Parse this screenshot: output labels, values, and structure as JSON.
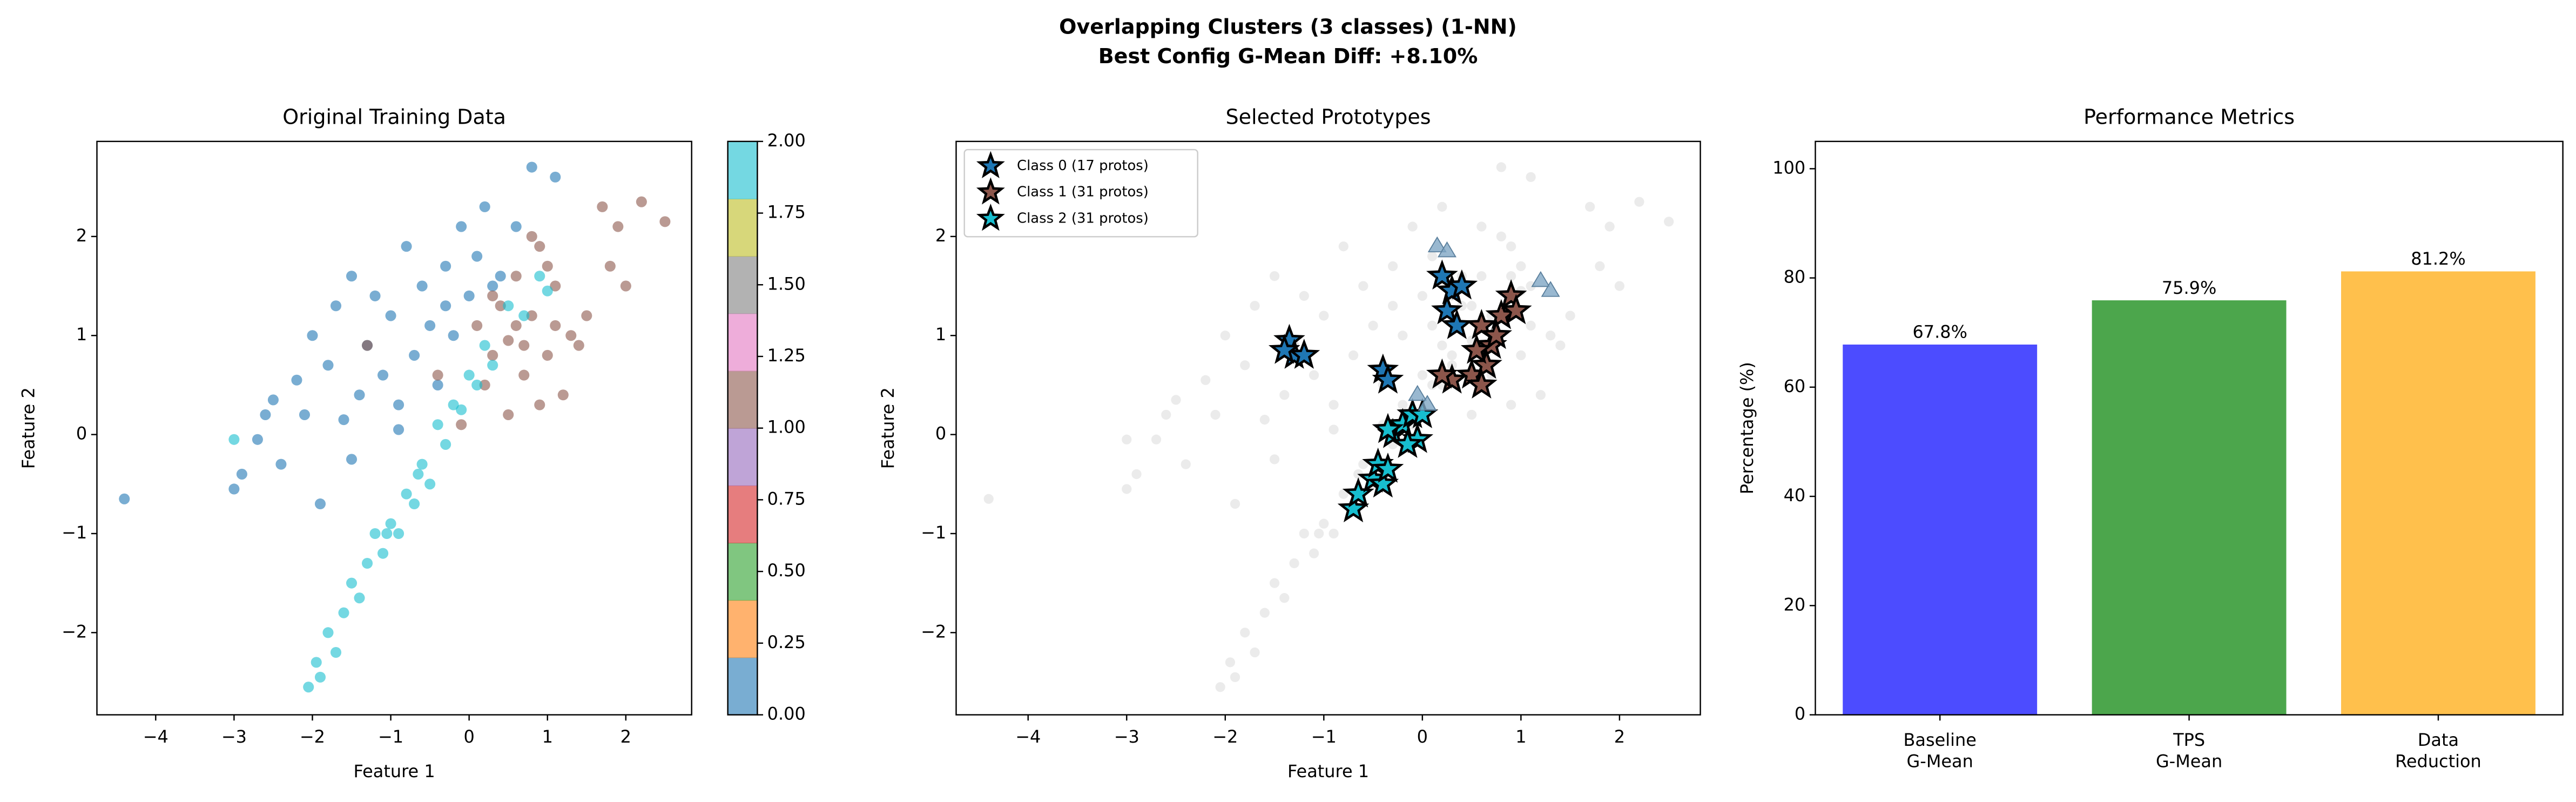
{
  "title": "Overlapping Clusters (3 classes) (1-NN)",
  "subtitle": "Best Config G-Mean Diff: +8.10%",
  "chart_data": [
    {
      "type": "scatter",
      "title": "Original Training Data",
      "xlabel": "Feature 1",
      "ylabel": "Feature 2",
      "xlim": [
        -4.75,
        2.84
      ],
      "ylim": [
        -2.83,
        2.96
      ],
      "xticks": [
        {
          "value": -4,
          "label": "−4"
        },
        {
          "value": -3,
          "label": "−3"
        },
        {
          "value": -2,
          "label": "−2"
        },
        {
          "value": -1,
          "label": "−1"
        },
        0,
        1,
        2
      ],
      "yticks": [
        {
          "value": -2,
          "label": "−2"
        },
        {
          "value": -1,
          "label": "−1"
        },
        0,
        1,
        2
      ],
      "series": [
        {
          "color": "#1f77b4",
          "marker": "circle",
          "x": [
            -4.4,
            -3.0,
            -2.9,
            -2.7,
            -2.5,
            -2.4,
            -2.2,
            -2.1,
            -2.0,
            -1.9,
            -1.8,
            -1.7,
            -1.6,
            -1.5,
            -1.4,
            -1.3,
            -1.2,
            -1.1,
            -1.0,
            -0.9,
            -0.8,
            -0.7,
            -0.6,
            -0.5,
            -0.4,
            -0.3,
            -0.2,
            -0.1,
            0.0,
            0.1,
            0.2,
            0.4,
            0.6,
            0.8,
            1.1,
            -1.5,
            -0.9,
            -0.3,
            0.3,
            -2.6
          ],
          "y": [
            -0.65,
            -0.55,
            -0.4,
            -0.05,
            0.35,
            -0.3,
            0.55,
            0.2,
            1.0,
            -0.7,
            0.7,
            1.3,
            0.15,
            1.6,
            0.4,
            0.9,
            1.4,
            0.6,
            1.2,
            0.05,
            1.9,
            0.8,
            1.5,
            1.1,
            0.5,
            1.7,
            1.0,
            2.1,
            1.4,
            1.8,
            2.3,
            1.6,
            2.1,
            2.7,
            2.6,
            -0.25,
            0.3,
            1.3,
            1.5,
            0.2
          ]
        },
        {
          "color": "#8c564b",
          "marker": "circle",
          "x": [
            -1.3,
            -0.4,
            -0.1,
            0.1,
            0.2,
            0.3,
            0.4,
            0.5,
            0.5,
            0.6,
            0.7,
            0.8,
            0.9,
            1.0,
            1.1,
            1.2,
            1.3,
            1.5,
            1.7,
            1.8,
            2.0,
            2.2,
            2.5,
            0.3,
            0.7,
            1.0,
            1.4,
            0.9,
            0.6,
            1.9,
            0.8,
            1.1
          ],
          "y": [
            0.9,
            0.6,
            0.1,
            1.1,
            0.5,
            0.8,
            1.3,
            0.2,
            0.95,
            1.6,
            0.6,
            1.2,
            1.9,
            0.8,
            1.5,
            0.4,
            1.0,
            1.2,
            2.3,
            1.7,
            1.5,
            2.35,
            2.15,
            1.4,
            0.9,
            1.7,
            0.9,
            0.3,
            1.1,
            2.1,
            2.0,
            1.1
          ]
        },
        {
          "color": "#17becf",
          "marker": "circle",
          "x": [
            -2.05,
            -1.95,
            -1.9,
            -1.8,
            -1.7,
            -1.6,
            -1.5,
            -1.4,
            -1.3,
            -1.2,
            -1.1,
            -1.0,
            -0.9,
            -0.8,
            -0.7,
            -0.6,
            -0.5,
            -0.4,
            -0.3,
            -0.2,
            -0.1,
            0.0,
            0.1,
            0.2,
            0.3,
            0.5,
            0.7,
            0.9,
            1.0,
            -3.0,
            -1.05,
            -0.65
          ],
          "y": [
            -2.55,
            -2.3,
            -2.45,
            -2.0,
            -2.2,
            -1.8,
            -1.5,
            -1.65,
            -1.3,
            -1.0,
            -1.2,
            -0.9,
            -1.0,
            -0.6,
            -0.7,
            -0.3,
            -0.5,
            0.1,
            -0.1,
            0.3,
            0.25,
            0.6,
            0.5,
            0.9,
            0.7,
            1.3,
            1.2,
            1.6,
            1.45,
            -0.05,
            -1.0,
            -0.4
          ]
        }
      ],
      "colorbar": {
        "lim": [
          0,
          2
        ],
        "colors": [
          "#1f77b4",
          "#ff7f0e",
          "#2ca02c",
          "#d62728",
          "#9467bd",
          "#8c564b",
          "#e377c2",
          "#7f7f7f",
          "#bcbd22",
          "#17becf"
        ],
        "ticks": [
          {
            "value": 0,
            "label": "0.00"
          },
          {
            "value": 0.25,
            "label": "0.25"
          },
          {
            "value": 0.5,
            "label": "0.50"
          },
          {
            "value": 0.75,
            "label": "0.75"
          },
          {
            "value": 1,
            "label": "1.00"
          },
          {
            "value": 1.25,
            "label": "1.25"
          },
          {
            "value": 1.5,
            "label": "1.50"
          },
          {
            "value": 1.75,
            "label": "1.75"
          },
          {
            "value": 2,
            "label": "2.00"
          }
        ]
      }
    },
    {
      "type": "scatter",
      "title": "Selected Prototypes",
      "xlabel": "Feature 1",
      "ylabel": "Feature 2",
      "xlim": [
        -4.73,
        2.82
      ],
      "ylim": [
        -2.83,
        2.96
      ],
      "xticks": [
        {
          "value": -4,
          "label": "−4"
        },
        {
          "value": -3,
          "label": "−3"
        },
        {
          "value": -2,
          "label": "−2"
        },
        {
          "value": -1,
          "label": "−1"
        },
        0,
        1,
        2
      ],
      "yticks": [
        {
          "value": -2,
          "label": "−2"
        },
        {
          "value": -1,
          "label": "−1"
        },
        0,
        1,
        2
      ],
      "background_color": "#cccccc",
      "legend": "upper left",
      "series": [
        {
          "name": "Class 0 (17 protos)",
          "color": "#1f77b4",
          "marker": "star",
          "x": [
            -1.35,
            -1.3,
            -1.2,
            -1.4,
            -0.4,
            -0.35,
            0.2,
            0.3,
            0.4,
            0.25,
            0.35
          ],
          "y": [
            0.95,
            0.8,
            0.8,
            0.85,
            0.65,
            0.55,
            1.6,
            1.45,
            1.5,
            1.25,
            1.1
          ]
        },
        {
          "name": "Class 1 (31 protos)",
          "color": "#8c564b",
          "marker": "star",
          "x": [
            0.6,
            0.7,
            0.8,
            0.9,
            0.95,
            0.5,
            0.3,
            0.65,
            0.6,
            0.75,
            0.55,
            0.2
          ],
          "y": [
            1.1,
            0.9,
            1.2,
            1.4,
            1.25,
            0.6,
            0.55,
            0.7,
            0.5,
            1.0,
            0.85,
            0.6
          ]
        },
        {
          "name": "Class 2 (31 protos)",
          "color": "#17becf",
          "marker": "star",
          "x": [
            -0.7,
            -0.65,
            -0.5,
            -0.45,
            -0.4,
            -0.35,
            -0.3,
            -0.2,
            -0.1,
            -0.05,
            -0.15,
            0.0,
            -0.35
          ],
          "y": [
            -0.75,
            -0.6,
            -0.45,
            -0.3,
            -0.5,
            -0.35,
            0.0,
            0.1,
            0.2,
            -0.05,
            -0.1,
            0.2,
            0.05
          ]
        },
        {
          "color": "#7fa6c4",
          "marker": "triangle",
          "x": [
            0.15,
            0.25,
            1.2,
            1.3,
            -0.05,
            0.05
          ],
          "y": [
            1.9,
            1.85,
            1.55,
            1.45,
            0.4,
            0.3
          ]
        }
      ]
    },
    {
      "type": "bar",
      "title": "Performance Metrics",
      "ylabel": "Percentage (%)",
      "categories": [
        "Baseline\nG-Mean",
        "TPS\nG-Mean",
        "Data\nReduction"
      ],
      "values": [
        67.8,
        75.9,
        81.2
      ],
      "value_labels": [
        "67.8%",
        "75.9%",
        "81.2%"
      ],
      "colors": [
        "#0000ff",
        "#008000",
        "#ffa500"
      ],
      "ylim": [
        0,
        105
      ],
      "yticks": [
        0,
        20,
        40,
        60,
        80,
        100
      ]
    }
  ]
}
